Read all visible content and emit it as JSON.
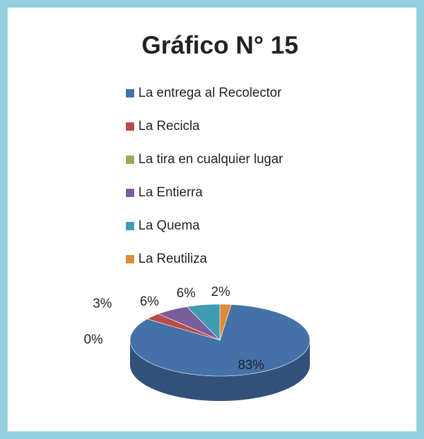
{
  "chart_data": {
    "type": "pie",
    "title": "Gráfico N° 15",
    "categories": [
      "La entrega al Recolector",
      "La Recicla",
      "La tira en cualquier lugar",
      "La Entierra",
      "La Quema",
      "La Reutiliza"
    ],
    "values": [
      83,
      3,
      0,
      6,
      6,
      2
    ],
    "value_labels": [
      "83%",
      "3%",
      "0%",
      "6%",
      "6%",
      "2%"
    ],
    "colors": [
      "#4571a9",
      "#b94b48",
      "#90ae56",
      "#7a5e9b",
      "#3f9bb1",
      "#e08b37"
    ],
    "legend": "top"
  }
}
